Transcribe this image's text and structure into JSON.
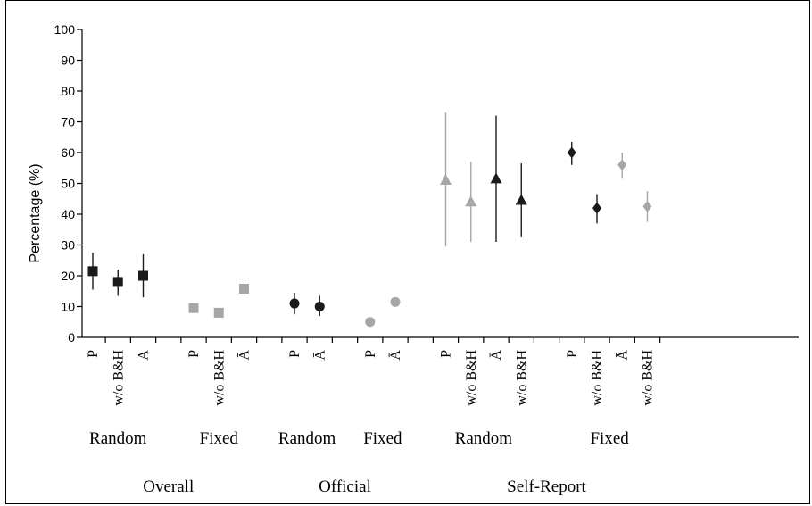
{
  "chart_data": {
    "type": "scatter",
    "title": "",
    "xlabel": "",
    "ylabel": "Percentage (%)",
    "ylim": [
      0,
      100
    ],
    "yticks": [
      0,
      10,
      20,
      30,
      40,
      50,
      60,
      70,
      80,
      90,
      100
    ],
    "grid": false,
    "groups": [
      {
        "name": "Overall",
        "subgroups": [
          {
            "name": "Random",
            "points": [
              {
                "label": "P",
                "value": 21.5,
                "lo": 15.5,
                "hi": 27.5,
                "marker": "square",
                "color": "#1a1a1a"
              },
              {
                "label": "w/o B&H",
                "value": 18,
                "lo": 13.5,
                "hi": 22,
                "marker": "square",
                "color": "#1a1a1a"
              },
              {
                "label": "Ā",
                "value": 20,
                "lo": 13,
                "hi": 27,
                "marker": "square",
                "color": "#1a1a1a"
              }
            ]
          },
          {
            "name": "Fixed",
            "points": [
              {
                "label": "P",
                "value": 9.5,
                "lo": 8.5,
                "hi": 10.5,
                "marker": "square",
                "color": "#a6a6a6"
              },
              {
                "label": "w/o B&H",
                "value": 8,
                "lo": 7.5,
                "hi": 8.8,
                "marker": "square",
                "color": "#a6a6a6"
              },
              {
                "label": "Ā",
                "value": 15.8,
                "lo": 14.5,
                "hi": 17,
                "marker": "square",
                "color": "#a6a6a6"
              }
            ]
          }
        ]
      },
      {
        "name": "Official",
        "subgroups": [
          {
            "name": "Random",
            "points": [
              {
                "label": "P",
                "value": 11,
                "lo": 7.5,
                "hi": 14.5,
                "marker": "circle",
                "color": "#1a1a1a"
              },
              {
                "label": "Ā",
                "value": 10,
                "lo": 7,
                "hi": 13.5,
                "marker": "circle",
                "color": "#1a1a1a"
              }
            ]
          },
          {
            "name": "Fixed",
            "points": [
              {
                "label": "P",
                "value": 5,
                "lo": 4.5,
                "hi": 5.5,
                "marker": "circle",
                "color": "#a6a6a6"
              },
              {
                "label": "Ā",
                "value": 11.5,
                "lo": 10.8,
                "hi": 12.2,
                "marker": "circle",
                "color": "#a6a6a6"
              }
            ]
          }
        ]
      },
      {
        "name": "Self-Report",
        "subgroups": [
          {
            "name": "Random",
            "points": [
              {
                "label": "P",
                "value": 51,
                "lo": 29.5,
                "hi": 73,
                "marker": "triangle",
                "color": "#a6a6a6"
              },
              {
                "label": "w/o B&H",
                "value": 44,
                "lo": 31,
                "hi": 57,
                "marker": "triangle",
                "color": "#a6a6a6"
              },
              {
                "label": "Ā",
                "value": 51.5,
                "lo": 31,
                "hi": 72,
                "marker": "triangle",
                "color": "#1a1a1a"
              },
              {
                "label": "w/o B&H",
                "value": 44.5,
                "lo": 32.5,
                "hi": 56.5,
                "marker": "triangle",
                "color": "#1a1a1a"
              }
            ]
          },
          {
            "name": "Fixed",
            "points": [
              {
                "label": "P",
                "value": 60,
                "lo": 56,
                "hi": 63.5,
                "marker": "diamond",
                "color": "#1a1a1a"
              },
              {
                "label": "w/o B&H",
                "value": 42,
                "lo": 37,
                "hi": 46.5,
                "marker": "diamond",
                "color": "#1a1a1a"
              },
              {
                "label": "Ā",
                "value": 56,
                "lo": 51.5,
                "hi": 60,
                "marker": "diamond",
                "color": "#a6a6a6"
              },
              {
                "label": "w/o B&H",
                "value": 42.5,
                "lo": 37.5,
                "hi": 47.5,
                "marker": "diamond",
                "color": "#a6a6a6"
              }
            ]
          }
        ]
      }
    ]
  }
}
